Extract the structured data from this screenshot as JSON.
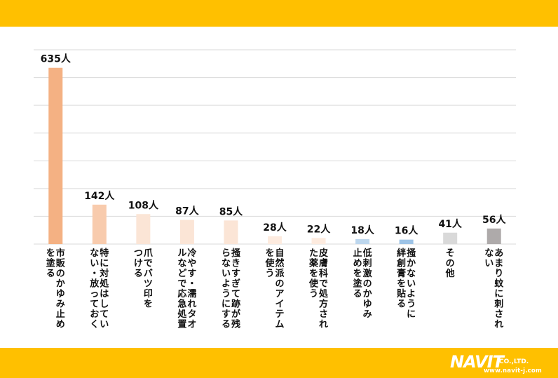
{
  "brand": {
    "logo_text": "NAVIT",
    "company_suffix": "CO.,LTD.",
    "url": "www.navit-j.com"
  },
  "colors": {
    "band": "#FFC000",
    "grid": "#D9D9D9"
  },
  "chart_data": {
    "type": "bar",
    "ylim": [
      0,
      700
    ],
    "grid": true,
    "gridline_step": 100,
    "categories": [
      [
        "市販のかゆみ止め",
        "を塗る"
      ],
      [
        "特に対処はしてい",
        "ない・放っておく"
      ],
      [
        "爪でバツ印を",
        "つける"
      ],
      [
        "冷やす・濡れタオ",
        "ルなどで応急処置"
      ],
      [
        "掻きすぎて跡が残",
        "らないようにする"
      ],
      [
        "自然派のアイテム",
        "を使う"
      ],
      [
        "皮膚科で処方され",
        "た薬を使う"
      ],
      [
        "低刺激のかゆみ",
        "止めを塗る"
      ],
      [
        "掻かないように",
        "絆創膏を貼る"
      ],
      [
        "その他"
      ],
      [
        "あまり蚊に刺され",
        "ない"
      ]
    ],
    "values": [
      635,
      142,
      108,
      87,
      85,
      28,
      22,
      18,
      16,
      41,
      56
    ],
    "value_labels": [
      "635人",
      "142人",
      "108人",
      "87人",
      "85人",
      "28人",
      "22人",
      "18人",
      "16人",
      "41人",
      "56人"
    ],
    "bar_colors": [
      "#F4B183",
      "#F8CBAD",
      "#FBE5D6",
      "#FBE5D6",
      "#FBE5D6",
      "#FDEBDF",
      "#FDEBDF",
      "#BDD7EE",
      "#9DC3E6",
      "#D9D9D9",
      "#AEAAAA"
    ]
  }
}
